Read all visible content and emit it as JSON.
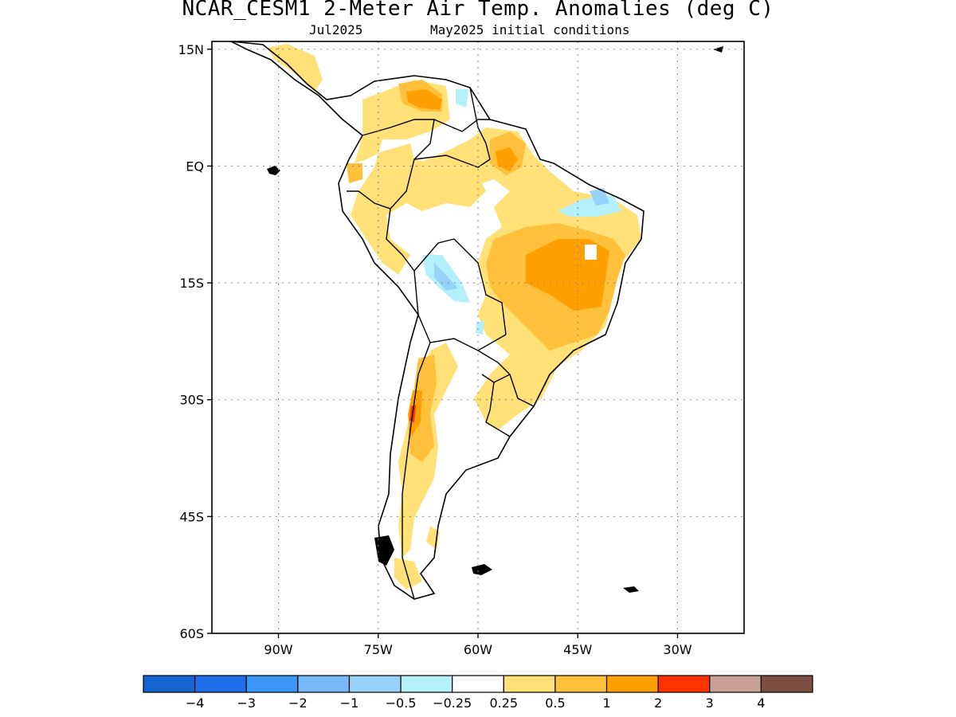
{
  "header": {
    "title": "NCAR_CESM1 2-Meter Air Temp. Anomalies (deg C)",
    "valid_month": "Jul2025",
    "init": "May2025 initial conditions"
  },
  "map": {
    "region": "South America",
    "lat_range": [
      -60,
      16
    ],
    "lon_range": [
      -100,
      -20
    ],
    "lat_ticks": [
      {
        "value": 15,
        "label": "15N"
      },
      {
        "value": 0,
        "label": "EQ"
      },
      {
        "value": -15,
        "label": "15S"
      },
      {
        "value": -30,
        "label": "30S"
      },
      {
        "value": -45,
        "label": "45S"
      },
      {
        "value": -60,
        "label": "60S"
      }
    ],
    "lon_ticks": [
      {
        "value": -90,
        "label": "90W"
      },
      {
        "value": -75,
        "label": "75W"
      },
      {
        "value": -60,
        "label": "60W"
      },
      {
        "value": -45,
        "label": "45W"
      },
      {
        "value": -30,
        "label": "30W"
      }
    ],
    "grid": "dotted"
  },
  "colorbar": {
    "colors": [
      "#1464d2",
      "#1e6eeb",
      "#3c96f5",
      "#78b9fa",
      "#96d2fa",
      "#b4f0fa",
      "#ffffff",
      "#ffe178",
      "#ffc03c",
      "#ffa000",
      "#ff3200",
      "#c8a096",
      "#7d4e42"
    ],
    "labels": [
      "−4",
      "−3",
      "−2",
      "−1",
      "−0.5",
      "−0.25",
      "0.25",
      "0.5",
      "1",
      "2",
      "3",
      "4"
    ]
  },
  "colors": {
    "anom_0_5": "#ffe178",
    "anom_1": "#ffc03c",
    "anom_2": "#ffa000",
    "anom_3": "#ff3200",
    "anom_neg_0_25": "#b4f0fa",
    "anom_neg_0_5": "#96d2fa"
  }
}
